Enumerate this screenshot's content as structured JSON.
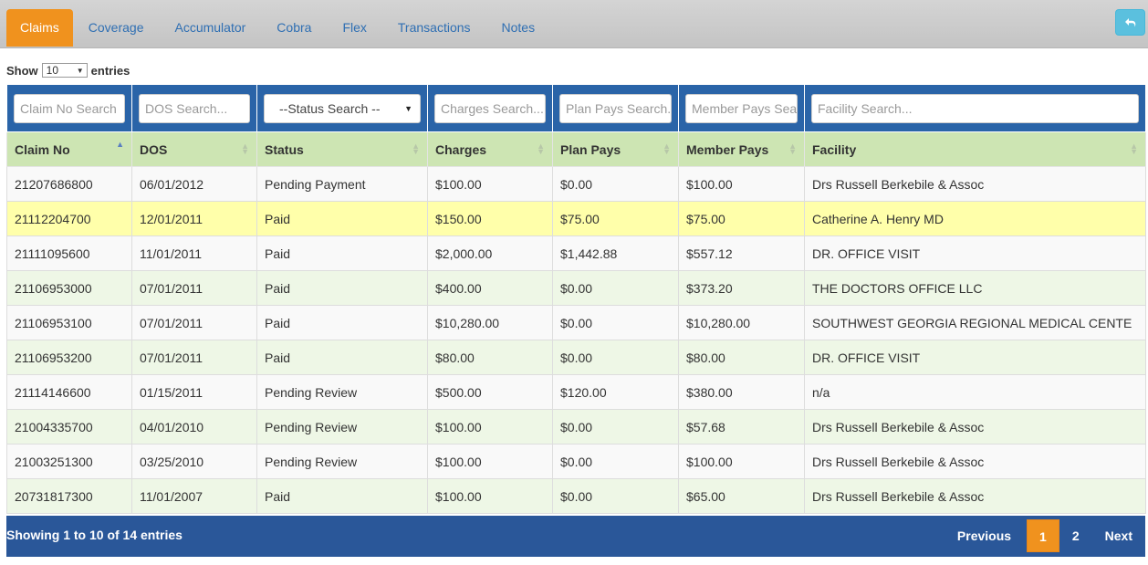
{
  "tabs": [
    "Claims",
    "Coverage",
    "Accumulator",
    "Cobra",
    "Flex",
    "Transactions",
    "Notes"
  ],
  "active_tab": "Claims",
  "colors": {
    "accent": "#f0921e",
    "header_blue": "#2a64a8",
    "footer_blue": "#2a5799",
    "column_header_green": "#cde5b3",
    "highlight_row": "#ffffaa"
  },
  "back_button": {
    "icon": "reply-icon"
  },
  "length": {
    "label_before": "Show",
    "value": "10",
    "label_after": "entries"
  },
  "search": {
    "claim_no": "Claim No Search",
    "dos": "DOS Search...",
    "status": "--Status Search --",
    "charges": "Charges Search...",
    "plan_pays": "Plan Pays Search...",
    "member_pays": "Member Pays Search...",
    "facility": "Facility Search..."
  },
  "columns": [
    "Claim No",
    "DOS",
    "Status",
    "Charges",
    "Plan Pays",
    "Member Pays",
    "Facility"
  ],
  "rows": [
    [
      "21207686800",
      "06/01/2012",
      "Pending Payment",
      "$100.00",
      "$0.00",
      "$100.00",
      "Drs Russell Berkebile & Assoc"
    ],
    [
      "21112204700",
      "12/01/2011",
      "Paid",
      "$150.00",
      "$75.00",
      "$75.00",
      "Catherine A. Henry MD"
    ],
    [
      "21111095600",
      "11/01/2011",
      "Paid",
      "$2,000.00",
      "$1,442.88",
      "$557.12",
      "DR. OFFICE VISIT"
    ],
    [
      "21106953000",
      "07/01/2011",
      "Paid",
      "$400.00",
      "$0.00",
      "$373.20",
      "THE DOCTORS OFFICE LLC"
    ],
    [
      "21106953100",
      "07/01/2011",
      "Paid",
      "$10,280.00",
      "$0.00",
      "$10,280.00",
      "SOUTHWEST GEORGIA REGIONAL MEDICAL CENTE"
    ],
    [
      "21106953200",
      "07/01/2011",
      "Paid",
      "$80.00",
      "$0.00",
      "$80.00",
      "DR. OFFICE VISIT"
    ],
    [
      "21114146600",
      "01/15/2011",
      "Pending Review",
      "$500.00",
      "$120.00",
      "$380.00",
      "n/a"
    ],
    [
      "21004335700",
      "04/01/2010",
      "Pending Review",
      "$100.00",
      "$0.00",
      "$57.68",
      "Drs Russell Berkebile & Assoc"
    ],
    [
      "21003251300",
      "03/25/2010",
      "Pending Review",
      "$100.00",
      "$0.00",
      "$100.00",
      "Drs Russell Berkebile & Assoc"
    ],
    [
      "20731817300",
      "11/01/2007",
      "Paid",
      "$100.00",
      "$0.00",
      "$65.00",
      "Drs Russell Berkebile & Assoc"
    ]
  ],
  "footer": {
    "info": "Showing 1 to 10 of 14 entries",
    "previous": "Previous",
    "pages": [
      "1",
      "2"
    ],
    "current_page": "1",
    "next": "Next"
  }
}
